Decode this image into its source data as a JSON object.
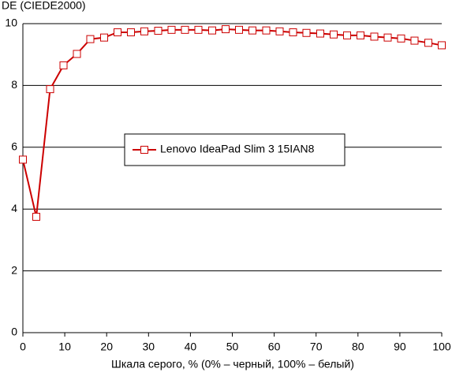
{
  "chart_data": {
    "type": "line",
    "y_label": "DE (CIEDE2000)",
    "x_label": "Шкала серого, % (0% – черный, 100% – белый)",
    "x": [
      0,
      3.2,
      6.5,
      9.7,
      12.9,
      16.1,
      19.4,
      22.6,
      25.8,
      29,
      32.3,
      35.5,
      38.7,
      41.9,
      45.2,
      48.4,
      51.6,
      54.8,
      58.1,
      61.3,
      64.5,
      67.7,
      71,
      74.2,
      77.4,
      80.6,
      83.9,
      87.1,
      90.3,
      93.5,
      96.8,
      100
    ],
    "series": [
      {
        "name": "Lenovo IdeaPad Slim 3 15IAN8",
        "color": "#cc0000",
        "values": [
          5.6,
          3.75,
          7.88,
          8.65,
          9.02,
          9.5,
          9.55,
          9.72,
          9.72,
          9.75,
          9.77,
          9.8,
          9.8,
          9.8,
          9.78,
          9.82,
          9.8,
          9.78,
          9.78,
          9.75,
          9.72,
          9.7,
          9.68,
          9.65,
          9.62,
          9.62,
          9.58,
          9.55,
          9.52,
          9.45,
          9.38,
          9.3
        ]
      }
    ],
    "xlim": [
      0,
      100
    ],
    "xticks": [
      0,
      10,
      20,
      30,
      40,
      50,
      60,
      70,
      80,
      90,
      100
    ],
    "ylim": [
      0,
      10
    ],
    "yticks": [
      0,
      2,
      4,
      6,
      8,
      10
    ],
    "grid": true,
    "legend": "center"
  }
}
